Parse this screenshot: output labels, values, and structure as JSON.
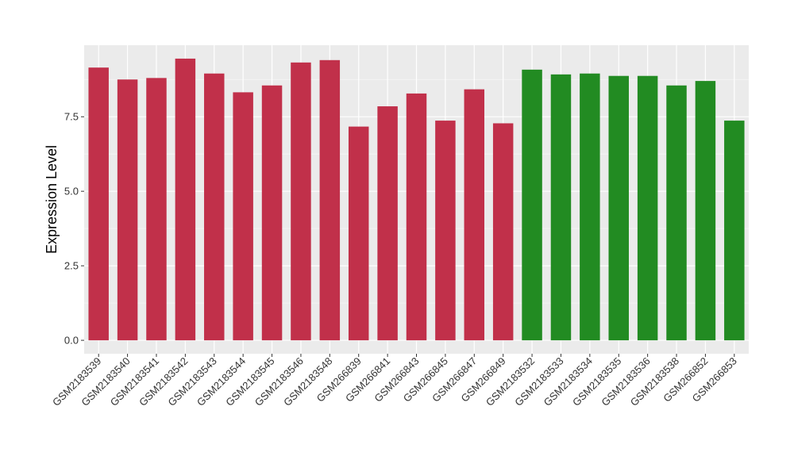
{
  "chart_data": {
    "type": "bar",
    "title": "",
    "xlabel": "",
    "ylabel": "Expression Level",
    "ylim": [
      -0.45,
      9.9
    ],
    "yticks": [
      0.0,
      2.5,
      5.0,
      7.5
    ],
    "ytick_labels": [
      "0.0",
      "2.5",
      "5.0",
      "7.5"
    ],
    "grid": true,
    "legend": "none",
    "categories": [
      "GSM2183539",
      "GSM2183540",
      "GSM2183541",
      "GSM2183542",
      "GSM2183543",
      "GSM2183544",
      "GSM2183545",
      "GSM2183546",
      "GSM2183548",
      "GSM266839",
      "GSM266841",
      "GSM266843",
      "GSM266845",
      "GSM266847",
      "GSM266849",
      "GSM2183532",
      "GSM2183533",
      "GSM2183534",
      "GSM2183535",
      "GSM2183536",
      "GSM2183538",
      "GSM266852",
      "GSM266853"
    ],
    "values": [
      9.15,
      8.75,
      8.8,
      9.45,
      8.95,
      8.32,
      8.55,
      9.32,
      9.4,
      7.17,
      7.85,
      8.28,
      7.37,
      8.42,
      7.28,
      9.08,
      8.92,
      8.95,
      8.87,
      8.87,
      8.55,
      8.7,
      7.37
    ],
    "bar_colors": [
      "#c1304a",
      "#c1304a",
      "#c1304a",
      "#c1304a",
      "#c1304a",
      "#c1304a",
      "#c1304a",
      "#c1304a",
      "#c1304a",
      "#c1304a",
      "#c1304a",
      "#c1304a",
      "#c1304a",
      "#c1304a",
      "#c1304a",
      "#228b22",
      "#228b22",
      "#228b22",
      "#228b22",
      "#228b22",
      "#228b22",
      "#228b22",
      "#228b22"
    ],
    "colors": {
      "panel_background": "#ebebeb",
      "grid_major": "#ffffff",
      "grid_minor": "#f5f5f5",
      "axis_text": "#333333",
      "tick_mark": "#333333"
    }
  }
}
